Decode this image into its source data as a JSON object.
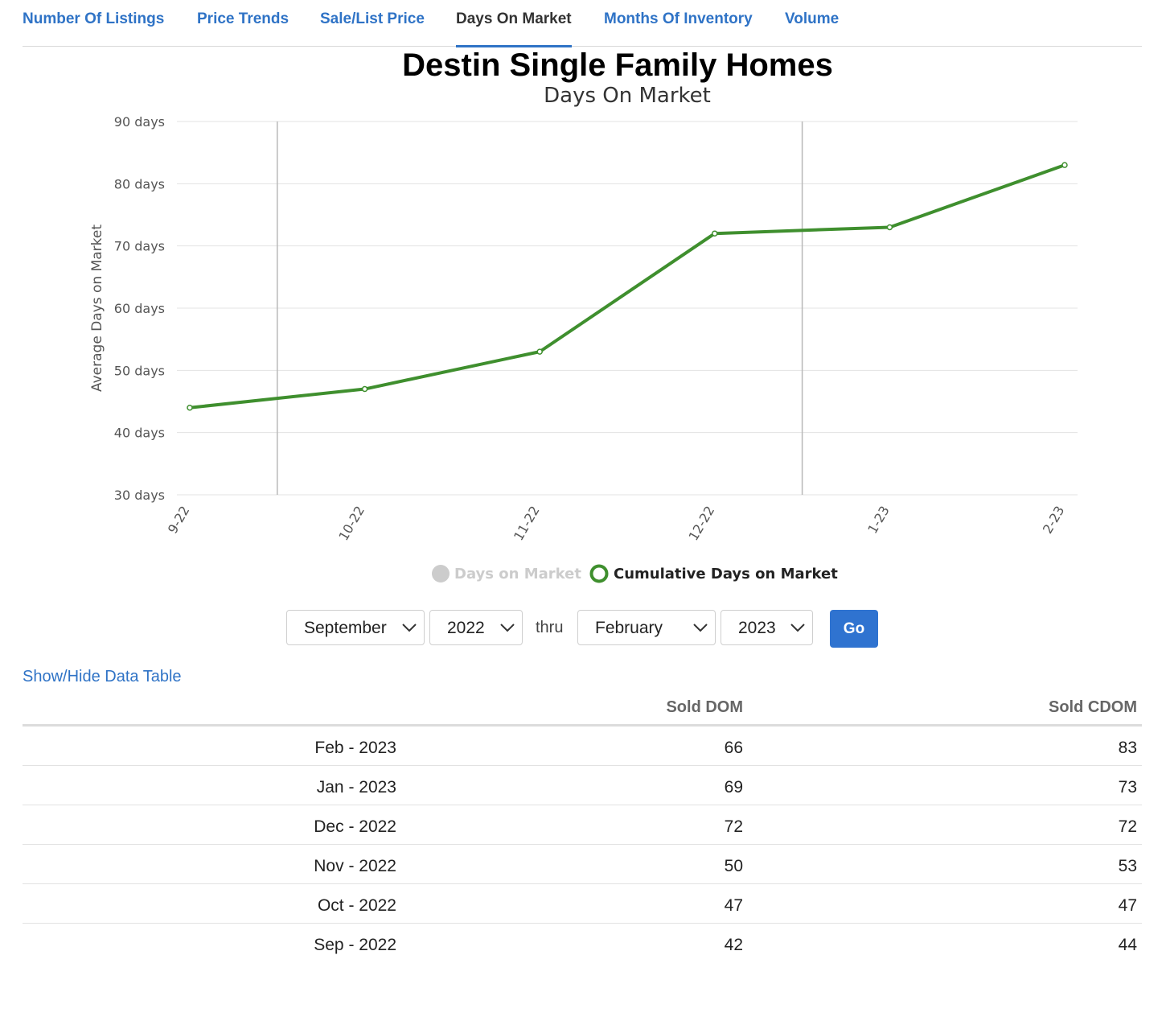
{
  "tabs": [
    {
      "label": "Number Of Listings",
      "active": false
    },
    {
      "label": "Price Trends",
      "active": false
    },
    {
      "label": "Sale/List Price",
      "active": false
    },
    {
      "label": "Days On Market",
      "active": true
    },
    {
      "label": "Months Of Inventory",
      "active": false
    },
    {
      "label": "Volume",
      "active": false
    }
  ],
  "chart_data": {
    "type": "line",
    "title": "Destin Single Family Homes",
    "subtitle": "Days On Market",
    "ylabel": "Average Days on Market",
    "xlabel": "",
    "categories": [
      "9-22",
      "10-22",
      "11-22",
      "12-22",
      "1-23",
      "2-23"
    ],
    "y_ticks": [
      "30 days",
      "40 days",
      "50 days",
      "60 days",
      "70 days",
      "80 days",
      "90 days"
    ],
    "ylim": [
      30,
      90
    ],
    "grid": true,
    "legend_position": "bottom",
    "series": [
      {
        "name": "Days on Market",
        "values": [
          42,
          47,
          50,
          72,
          69,
          66
        ],
        "visible": false,
        "color": "#cccccc"
      },
      {
        "name": "Cumulative Days on Market",
        "values": [
          44,
          47,
          53,
          72,
          73,
          83
        ],
        "visible": true,
        "color": "#3f8f2e"
      }
    ]
  },
  "controls": {
    "from_month": "September",
    "from_year": "2022",
    "thru_label": "thru",
    "to_month": "February",
    "to_year": "2023",
    "go_label": "Go"
  },
  "table_toggle_label": "Show/Hide Data Table",
  "table": {
    "headers": [
      "",
      "Sold DOM",
      "Sold CDOM"
    ],
    "rows": [
      {
        "month": "Feb - 2023",
        "dom": "66",
        "cdom": "83"
      },
      {
        "month": "Jan - 2023",
        "dom": "69",
        "cdom": "73"
      },
      {
        "month": "Dec - 2022",
        "dom": "72",
        "cdom": "72"
      },
      {
        "month": "Nov - 2022",
        "dom": "50",
        "cdom": "53"
      },
      {
        "month": "Oct - 2022",
        "dom": "47",
        "cdom": "47"
      },
      {
        "month": "Sep - 2022",
        "dom": "42",
        "cdom": "44"
      }
    ]
  },
  "colors": {
    "accent": "#2f73c6",
    "line": "#3f8f2e",
    "hidden_series": "#cccccc"
  }
}
